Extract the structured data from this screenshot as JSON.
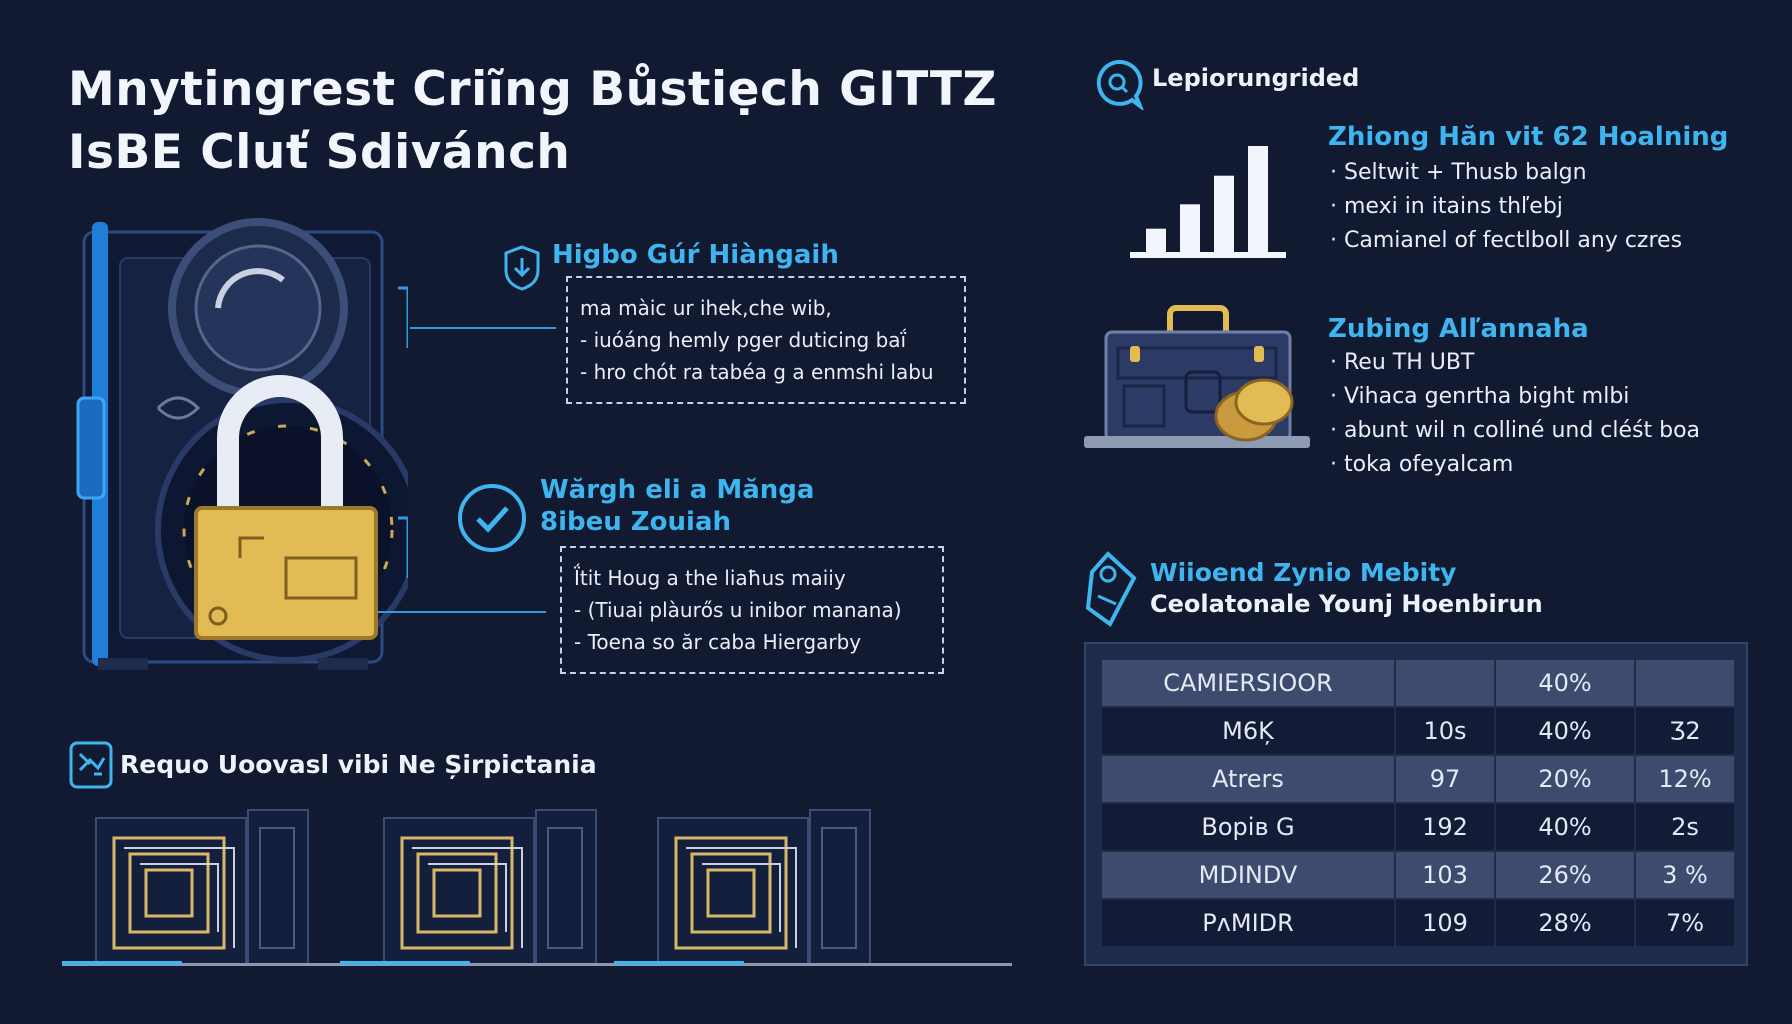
{
  "title": {
    "line1": "Mnytingrest Criĩng Bůstiẹch GITTZ",
    "line2": "IsBE Cluť Sdivánch"
  },
  "security_points": [
    {
      "heading": "Higbo Gúŕ Hiàngaih",
      "icon": "shield-download-icon",
      "lines": [
        "ma màic ur ihek,che wib,",
        "- iuóáng hemly pger duticing baḯ",
        "- hro chót ra tabéa g a enmshi labu"
      ]
    },
    {
      "heading": "Wărgh eli a Măngа 8ibeu Zouiah",
      "icon": "check-circle-icon",
      "lines": [
        "Ḯtit Houg a the liaħus maiiy",
        "- (Tiuai plàurős u inibor manana)",
        "- Toena so ăr caba Hiergarby"
      ]
    }
  ],
  "storage": {
    "heading": "Requo Uoovasl vibi Ne Șirpictania",
    "icon": "storage-icon"
  },
  "right_header": {
    "label": "Lepiorungrided",
    "icon": "search-bubble-icon"
  },
  "growth": {
    "heading": "Zhiong Hăn vit 62 Hoalning",
    "items": [
      "· Seltwit + Thusb balgn",
      "· mexi in itains thľebj",
      "· Camianel of fectlboll any czres"
    ],
    "bars": [
      0.22,
      0.45,
      0.72,
      1.0
    ],
    "icon": "bar-chart-icon"
  },
  "finance": {
    "heading": "Zubing Alľannaha",
    "items": [
      "· Reu TH UBT",
      "· Vihaca genrtha bight mlbi",
      "· abunt wil n colliné und cléśt boa",
      "· toka ofeyalcam"
    ],
    "icon": "briefcase-coins-icon"
  },
  "table_section": {
    "heading": "Wiioend Zynio Mebity",
    "subheading": "Ceolatonale Younj Hoenbirun",
    "icon": "tag-icon",
    "header": [
      "CAMIERSIOOR",
      "",
      "40%",
      ""
    ],
    "rows": [
      [
        "M6Ķ",
        "10ꜱ",
        "40%",
        "Ʒ2"
      ],
      [
        "Atrers",
        "97",
        "20%",
        "12%"
      ],
      [
        "Bopiʙ G",
        "192",
        "40%",
        "2ꜱ"
      ],
      [
        "MDINDV",
        "103",
        "26%",
        "3 %"
      ],
      [
        "PᴧMIDR",
        "109",
        "28%",
        "7%"
      ]
    ]
  },
  "colors": {
    "background": "#111a30",
    "accent": "#3fb5f0",
    "gold": "#e3bb55",
    "panel": "#1e2b4b"
  }
}
